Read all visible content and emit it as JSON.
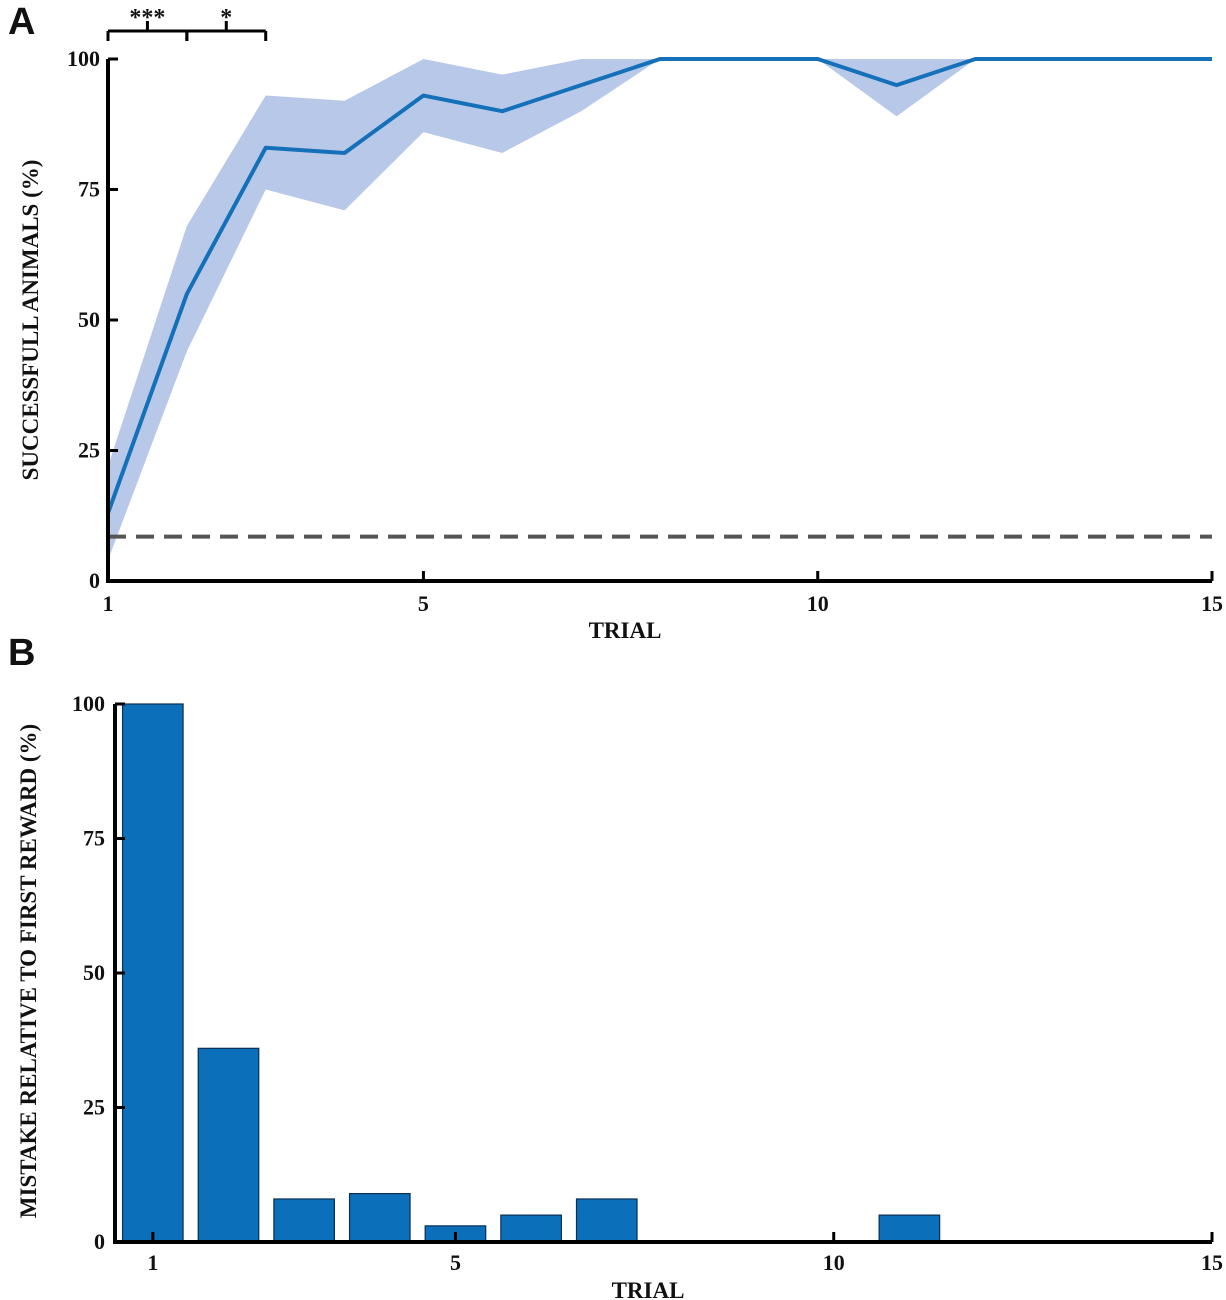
{
  "chart_data": [
    {
      "panel": "A",
      "type": "line",
      "xlabel": "TRIAL",
      "ylabel": "SUCCESSFULL ANIMALS (%)",
      "xlim": [
        1,
        15
      ],
      "ylim": [
        0,
        100
      ],
      "xticks": [
        1,
        5,
        10,
        15
      ],
      "yticks": [
        0,
        25,
        50,
        75,
        100
      ],
      "series": [
        {
          "name": "successful animals",
          "x": [
            1,
            2,
            3,
            4,
            5,
            6,
            7,
            8,
            9,
            10,
            11,
            12,
            13,
            14,
            15
          ],
          "values": [
            13,
            55,
            83,
            82,
            93,
            90,
            95,
            100,
            100,
            100,
            95,
            100,
            100,
            100,
            100
          ],
          "lower": [
            4,
            44,
            75,
            71,
            86,
            82,
            90,
            100,
            100,
            100,
            89,
            100,
            100,
            100,
            100
          ],
          "upper": [
            22,
            68,
            93,
            92,
            100,
            97,
            100,
            100,
            100,
            100,
            100,
            100,
            100,
            100,
            100
          ],
          "color": "#1470b8",
          "band_color": "#b7c8e8"
        }
      ],
      "reference_line": {
        "y": 8.5,
        "style": "dashed",
        "color": "#555555"
      },
      "significance": [
        {
          "from": 1,
          "to": 2,
          "label": "***"
        },
        {
          "from": 2,
          "to": 3,
          "label": "*"
        }
      ]
    },
    {
      "panel": "B",
      "type": "bar",
      "xlabel": "TRIAL",
      "ylabel": "MISTAKE RELATIVE TO FIRST REWARD (%)",
      "xlim": [
        0.5,
        15
      ],
      "ylim": [
        0,
        100
      ],
      "xticks": [
        1,
        5,
        10,
        15
      ],
      "yticks": [
        0,
        25,
        50,
        75,
        100
      ],
      "categories": [
        1,
        2,
        3,
        4,
        5,
        6,
        7,
        8,
        9,
        10,
        11,
        12,
        13,
        14,
        15
      ],
      "values": [
        100,
        36,
        8,
        9,
        3,
        5,
        8,
        0,
        0,
        0,
        5,
        0,
        0,
        0,
        0
      ],
      "color": "#0b70b9"
    }
  ]
}
